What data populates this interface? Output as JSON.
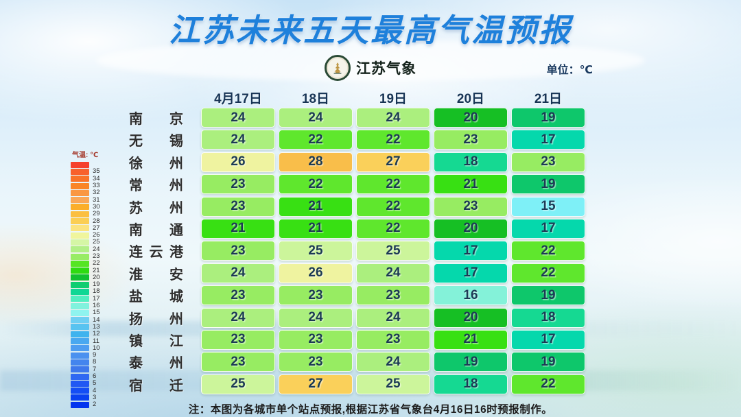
{
  "title": "江苏未来五天最高气温预报",
  "title_color": "#1E80DB",
  "logo": {
    "text": "江苏气象"
  },
  "unit_label": "单位：℃",
  "note": "注：本图为各城市单个站点预报,根据江苏省气象台4月16日16时预报制作。",
  "legend": {
    "title": "气温: ℃",
    "entries": [
      {
        "label": "",
        "color": "#F5402C"
      },
      {
        "label": "35",
        "color": "#F8612C"
      },
      {
        "label": "34",
        "color": "#F97329"
      },
      {
        "label": "33",
        "color": "#FA8527"
      },
      {
        "label": "32",
        "color": "#FA9742"
      },
      {
        "label": "31",
        "color": "#FAA757"
      },
      {
        "label": "30",
        "color": "#FBAE2A"
      },
      {
        "label": "29",
        "color": "#FBBF40"
      },
      {
        "label": "28",
        "color": "#FBCE53"
      },
      {
        "label": "27",
        "color": "#FBE37E"
      },
      {
        "label": "26",
        "color": "#F0F59D"
      },
      {
        "label": "25",
        "color": "#D5F6A5"
      },
      {
        "label": "24",
        "color": "#B2EF87"
      },
      {
        "label": "23",
        "color": "#98EC65"
      },
      {
        "label": "22",
        "color": "#55E523"
      },
      {
        "label": "21",
        "color": "#2EDB12"
      },
      {
        "label": "20",
        "color": "#12C131"
      },
      {
        "label": "19",
        "color": "#0FCD71"
      },
      {
        "label": "18",
        "color": "#0FD794"
      },
      {
        "label": "17",
        "color": "#52EEC1"
      },
      {
        "label": "16",
        "color": "#80F2DD"
      },
      {
        "label": "15",
        "color": "#8FF4EF"
      },
      {
        "label": "14",
        "color": "#6FCFF2"
      },
      {
        "label": "13",
        "color": "#58C3F0"
      },
      {
        "label": "12",
        "color": "#3FB3EE"
      },
      {
        "label": "11",
        "color": "#49A8F0"
      },
      {
        "label": "10",
        "color": "#4E9DF1"
      },
      {
        "label": "9",
        "color": "#4B91EF"
      },
      {
        "label": "8",
        "color": "#4485EE"
      },
      {
        "label": "7",
        "color": "#3E78EC"
      },
      {
        "label": "6",
        "color": "#2F68F2"
      },
      {
        "label": "5",
        "color": "#2058F3"
      },
      {
        "label": "4",
        "color": "#144EF5"
      },
      {
        "label": "3",
        "color": "#0A42F1"
      },
      {
        "label": "2",
        "color": "#0435EE"
      }
    ]
  },
  "value_colors": {
    "15": "#7EF0F7",
    "16": "#84F2D9",
    "17": "#05D8AC",
    "18": "#15D992",
    "19": "#0EC76B",
    "20": "#16BF24",
    "21": "#38E013",
    "22": "#5FE72D",
    "23": "#97EC62",
    "24": "#ABEF7E",
    "25": "#CCF59B",
    "26": "#EFF3A0",
    "27": "#FAD05A",
    "28": "#F9BE4A"
  },
  "chart_data": {
    "type": "heatmap",
    "title": "江苏未来五天最高气温预报",
    "unit": "℃",
    "columns": [
      "4月17日",
      "18日",
      "19日",
      "20日",
      "21日"
    ],
    "rows": [
      "南京",
      "无锡",
      "徐州",
      "常州",
      "苏州",
      "南通",
      "连云港",
      "淮安",
      "盐城",
      "扬州",
      "镇江",
      "泰州",
      "宿迁"
    ],
    "values": [
      [
        24,
        24,
        24,
        20,
        19
      ],
      [
        24,
        22,
        22,
        23,
        17
      ],
      [
        26,
        28,
        27,
        18,
        23
      ],
      [
        23,
        22,
        22,
        21,
        19
      ],
      [
        23,
        21,
        22,
        23,
        15
      ],
      [
        21,
        21,
        22,
        20,
        17
      ],
      [
        23,
        25,
        25,
        17,
        22
      ],
      [
        24,
        26,
        24,
        17,
        22
      ],
      [
        23,
        23,
        23,
        16,
        19
      ],
      [
        24,
        24,
        24,
        20,
        18
      ],
      [
        23,
        23,
        23,
        21,
        17
      ],
      [
        23,
        23,
        24,
        19,
        19
      ],
      [
        25,
        27,
        25,
        18,
        22
      ]
    ],
    "colorbar": {
      "title": "气温: ℃",
      "min": 2,
      "max": 35,
      "position": "left"
    },
    "legend_position": "left",
    "grid": false
  }
}
